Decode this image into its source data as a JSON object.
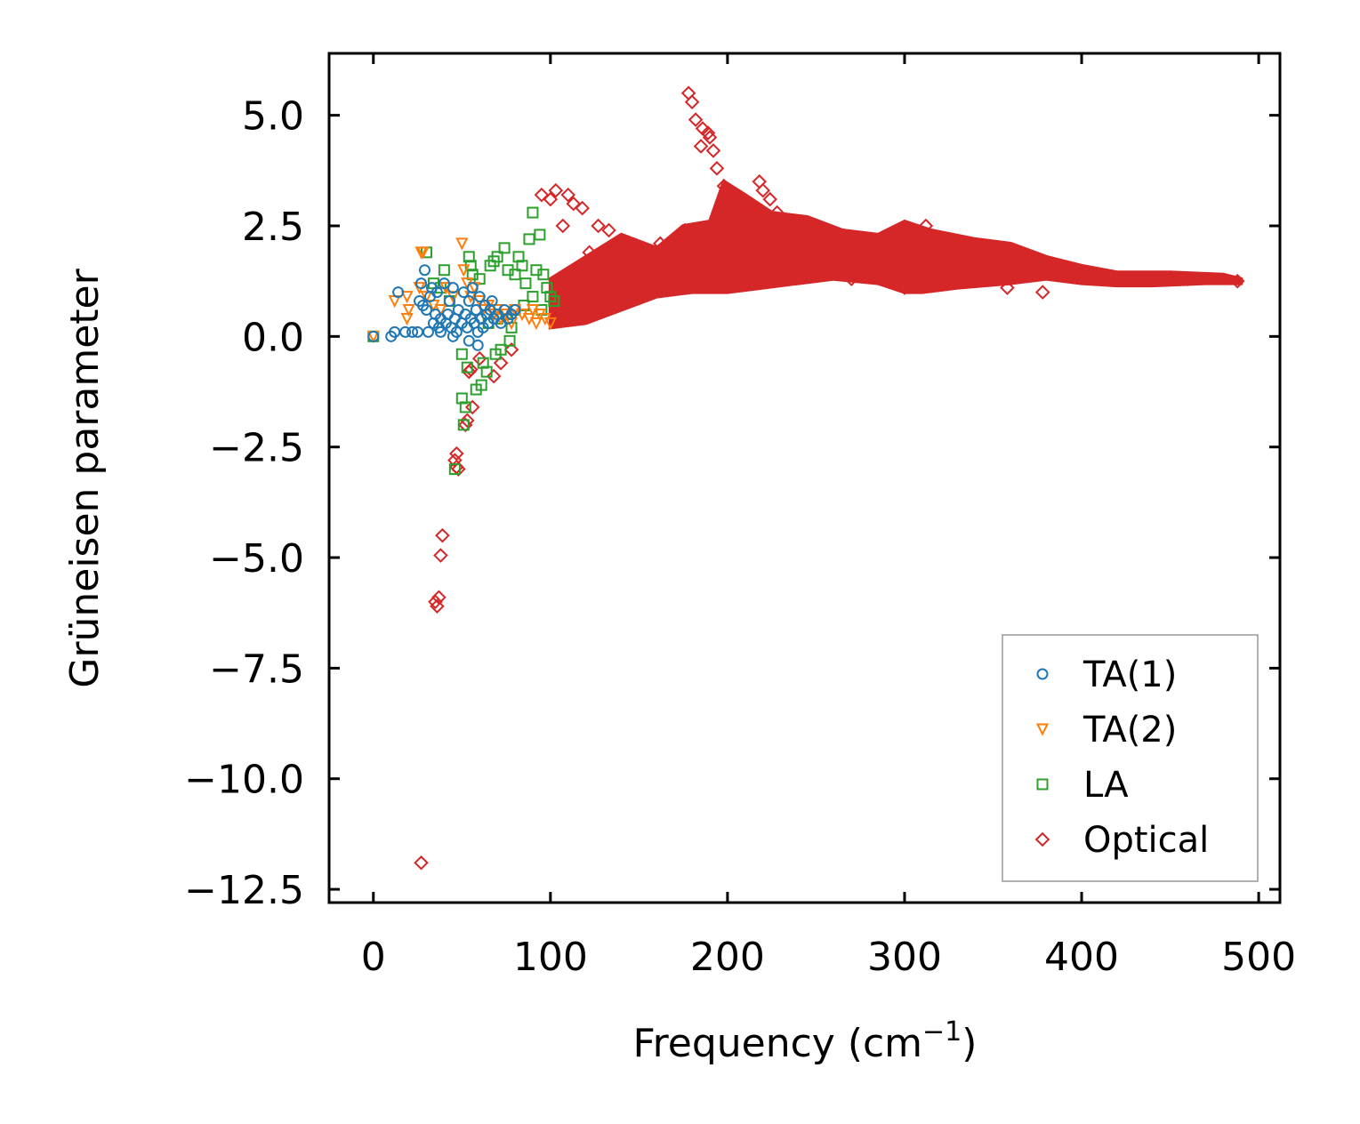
{
  "chart_data": {
    "type": "scatter",
    "title": "",
    "xlabel": "Frequency (cm",
    "xlabel_sup": "−1",
    "xlabel_close": ")",
    "ylabel": "Grüneisen parameter",
    "xlim": [
      -25,
      512
    ],
    "ylim": [
      -12.8,
      6.4
    ],
    "xticks": [
      0,
      100,
      200,
      300,
      400,
      500
    ],
    "xtick_labels": [
      "0",
      "100",
      "200",
      "300",
      "400",
      "500"
    ],
    "yticks": [
      5.0,
      2.5,
      0.0,
      -2.5,
      -5.0,
      -7.5,
      -10.0,
      -12.5
    ],
    "ytick_labels": [
      "5.0",
      "2.5",
      "0.0",
      "−2.5",
      "−5.0",
      "−7.5",
      "−10.0",
      "−12.5"
    ],
    "legend_position": "lower-right",
    "series": [
      {
        "name": "TA(1)",
        "marker": "circle",
        "color": "#1f77b4",
        "points": [
          [
            0,
            0.0
          ],
          [
            10,
            0.0
          ],
          [
            12,
            0.1
          ],
          [
            14,
            1.0
          ],
          [
            18,
            0.1
          ],
          [
            22,
            0.1
          ],
          [
            25,
            0.1
          ],
          [
            26,
            0.8
          ],
          [
            27,
            1.2
          ],
          [
            28,
            0.7
          ],
          [
            29,
            1.5
          ],
          [
            30,
            0.6
          ],
          [
            31,
            0.1
          ],
          [
            32,
            0.9
          ],
          [
            33,
            1.1
          ],
          [
            34,
            0.3
          ],
          [
            35,
            0.5
          ],
          [
            36,
            1.0
          ],
          [
            37,
            0.2
          ],
          [
            38,
            0.4
          ],
          [
            40,
            1.2
          ],
          [
            41,
            0.3
          ],
          [
            42,
            0.5
          ],
          [
            43,
            0.8
          ],
          [
            44,
            0.2
          ],
          [
            45,
            1.1
          ],
          [
            46,
            0.4
          ],
          [
            47,
            0.1
          ],
          [
            48,
            0.6
          ],
          [
            50,
            0.3
          ],
          [
            51,
            1.0
          ],
          [
            52,
            0.5
          ],
          [
            53,
            0.2
          ],
          [
            54,
            0.8
          ],
          [
            55,
            0.4
          ],
          [
            56,
            1.1
          ],
          [
            57,
            0.3
          ],
          [
            58,
            0.6
          ],
          [
            59,
            0.1
          ],
          [
            60,
            0.9
          ],
          [
            61,
            0.4
          ],
          [
            62,
            0.2
          ],
          [
            63,
            0.7
          ],
          [
            64,
            0.5
          ],
          [
            65,
            0.3
          ],
          [
            66,
            0.6
          ],
          [
            67,
            0.8
          ],
          [
            68,
            0.4
          ],
          [
            70,
            0.5
          ],
          [
            72,
            0.3
          ],
          [
            74,
            0.6
          ],
          [
            76,
            0.4
          ],
          [
            78,
            0.5
          ],
          [
            80,
            0.6
          ],
          [
            54,
            -0.1
          ],
          [
            59,
            -0.2
          ],
          [
            38,
            0.1
          ],
          [
            45,
            0.0
          ]
        ]
      },
      {
        "name": "TA(2)",
        "marker": "triangle-down",
        "color": "#ff7f0e",
        "points": [
          [
            0,
            0.0
          ],
          [
            12,
            0.8
          ],
          [
            19,
            0.9
          ],
          [
            20,
            0.6
          ],
          [
            19,
            0.4
          ],
          [
            27,
            1.9
          ],
          [
            28,
            1.9
          ],
          [
            26,
            1.1
          ],
          [
            30,
            0.9
          ],
          [
            34,
            0.7
          ],
          [
            38,
            0.6
          ],
          [
            41,
            1.1
          ],
          [
            45,
            0.9
          ],
          [
            50,
            2.1
          ],
          [
            51,
            1.5
          ],
          [
            53,
            1.2
          ],
          [
            55,
            0.9
          ],
          [
            57,
            1.1
          ],
          [
            60,
            0.8
          ],
          [
            62,
            0.6
          ],
          [
            65,
            0.7
          ],
          [
            68,
            0.5
          ],
          [
            70,
            0.6
          ],
          [
            72,
            0.4
          ],
          [
            75,
            0.5
          ],
          [
            78,
            0.3
          ],
          [
            80,
            0.6
          ],
          [
            84,
            0.5
          ],
          [
            88,
            0.4
          ],
          [
            90,
            0.6
          ],
          [
            92,
            0.3
          ],
          [
            94,
            0.5
          ],
          [
            97,
            0.4
          ],
          [
            100,
            0.3
          ]
        ]
      },
      {
        "name": "LA",
        "marker": "square",
        "color": "#2ca02c",
        "points": [
          [
            0,
            0.0
          ],
          [
            30,
            1.9
          ],
          [
            34,
            1.2
          ],
          [
            38,
            1.1
          ],
          [
            40,
            1.5
          ],
          [
            43,
            0.8
          ],
          [
            46,
            -3.0
          ],
          [
            50,
            -0.4
          ],
          [
            50,
            -1.4
          ],
          [
            51,
            -2.0
          ],
          [
            52,
            -1.6
          ],
          [
            53,
            -0.7
          ],
          [
            54,
            1.8
          ],
          [
            55,
            1.6
          ],
          [
            56,
            1.4
          ],
          [
            58,
            -1.2
          ],
          [
            60,
            1.3
          ],
          [
            61,
            -1.1
          ],
          [
            62,
            -0.6
          ],
          [
            64,
            -0.8
          ],
          [
            66,
            1.6
          ],
          [
            68,
            1.7
          ],
          [
            69,
            -0.4
          ],
          [
            70,
            1.8
          ],
          [
            72,
            -0.3
          ],
          [
            74,
            2.0
          ],
          [
            76,
            1.5
          ],
          [
            77,
            -0.1
          ],
          [
            80,
            1.4
          ],
          [
            82,
            1.8
          ],
          [
            84,
            1.6
          ],
          [
            86,
            1.2
          ],
          [
            88,
            2.2
          ],
          [
            90,
            2.8
          ],
          [
            92,
            1.5
          ],
          [
            94,
            2.3
          ],
          [
            96,
            1.4
          ],
          [
            98,
            1.1
          ],
          [
            100,
            0.9
          ],
          [
            102,
            0.8
          ],
          [
            90,
            0.9
          ],
          [
            85,
            0.7
          ],
          [
            80,
            0.6
          ],
          [
            75,
            0.5
          ],
          [
            70,
            0.4
          ],
          [
            65,
            0.3
          ],
          [
            95,
            0.6
          ],
          [
            78,
            0.2
          ]
        ]
      },
      {
        "name": "Optical",
        "marker": "diamond",
        "color": "#d62728",
        "points": [
          [
            27,
            -11.9
          ],
          [
            35,
            -6.0
          ],
          [
            36,
            -6.1
          ],
          [
            37,
            -5.9
          ],
          [
            38,
            -4.95
          ],
          [
            39,
            -4.5
          ],
          [
            46,
            -2.8
          ],
          [
            47,
            -2.65
          ],
          [
            47,
            -2.95
          ],
          [
            48,
            -3.0
          ],
          [
            52,
            -2.0
          ],
          [
            53,
            -1.9
          ],
          [
            54,
            -0.8
          ],
          [
            55,
            -0.75
          ],
          [
            56,
            -1.6
          ],
          [
            60,
            -0.5
          ],
          [
            68,
            -0.9
          ],
          [
            72,
            -0.6
          ],
          [
            78,
            -0.3
          ],
          [
            95,
            3.2
          ],
          [
            100,
            3.1
          ],
          [
            103,
            3.3
          ],
          [
            107,
            2.5
          ],
          [
            110,
            3.2
          ],
          [
            113,
            3.0
          ],
          [
            118,
            2.9
          ],
          [
            122,
            1.9
          ],
          [
            127,
            2.5
          ],
          [
            133,
            2.4
          ],
          [
            162,
            2.1
          ],
          [
            173,
            2.3
          ],
          [
            176,
            2.4
          ],
          [
            178,
            5.5
          ],
          [
            180,
            5.3
          ],
          [
            182,
            4.9
          ],
          [
            185,
            4.3
          ],
          [
            186,
            4.7
          ],
          [
            189,
            4.6
          ],
          [
            190,
            4.5
          ],
          [
            192,
            4.2
          ],
          [
            194,
            3.8
          ],
          [
            198,
            3.4
          ],
          [
            201,
            2.9
          ],
          [
            205,
            2.7
          ],
          [
            212,
            2.5
          ],
          [
            218,
            3.5
          ],
          [
            220,
            3.3
          ],
          [
            224,
            3.1
          ],
          [
            228,
            2.8
          ],
          [
            236,
            2.2
          ],
          [
            246,
            1.8
          ],
          [
            258,
            1.6
          ],
          [
            270,
            1.3
          ],
          [
            285,
            1.5
          ],
          [
            300,
            1.1
          ],
          [
            312,
            2.5
          ],
          [
            330,
            1.7
          ],
          [
            345,
            1.4
          ],
          [
            358,
            1.1
          ],
          [
            378,
            1.0
          ],
          [
            400,
            1.4
          ],
          [
            420,
            1.3
          ],
          [
            440,
            1.3
          ],
          [
            460,
            1.3
          ],
          [
            488,
            1.25
          ]
        ]
      }
    ],
    "optical_band": {
      "upper": [
        [
          100,
          1.3
        ],
        [
          120,
          1.8
        ],
        [
          140,
          2.3
        ],
        [
          160,
          2.0
        ],
        [
          175,
          2.5
        ],
        [
          190,
          2.6
        ],
        [
          198,
          3.5
        ],
        [
          210,
          3.2
        ],
        [
          225,
          2.8
        ],
        [
          245,
          2.7
        ],
        [
          265,
          2.4
        ],
        [
          285,
          2.3
        ],
        [
          300,
          2.6
        ],
        [
          315,
          2.4
        ],
        [
          340,
          2.2
        ],
        [
          360,
          2.1
        ],
        [
          380,
          1.8
        ],
        [
          400,
          1.6
        ],
        [
          420,
          1.45
        ],
        [
          450,
          1.45
        ],
        [
          480,
          1.4
        ],
        [
          490,
          1.3
        ]
      ],
      "lower": [
        [
          490,
          1.2
        ],
        [
          470,
          1.2
        ],
        [
          440,
          1.15
        ],
        [
          420,
          1.15
        ],
        [
          400,
          1.2
        ],
        [
          380,
          1.3
        ],
        [
          360,
          1.2
        ],
        [
          330,
          1.1
        ],
        [
          310,
          1.0
        ],
        [
          300,
          1.0
        ],
        [
          285,
          1.2
        ],
        [
          260,
          1.3
        ],
        [
          240,
          1.2
        ],
        [
          220,
          1.1
        ],
        [
          200,
          1.0
        ],
        [
          180,
          1.0
        ],
        [
          160,
          0.9
        ],
        [
          140,
          0.6
        ],
        [
          120,
          0.3
        ],
        [
          100,
          0.2
        ]
      ]
    }
  }
}
